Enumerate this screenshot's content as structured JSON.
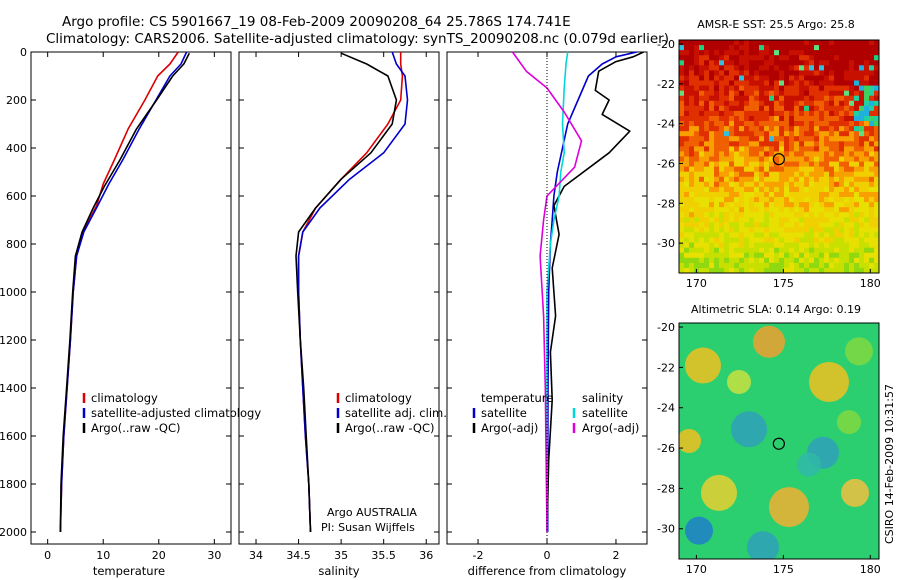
{
  "header": {
    "title_line1": "Argo profile: CS 5901667_19 08-Feb-2009 20090208_64 25.786S 174.741E",
    "title_line2": "Climatology: CARS2006. Satellite-adjusted climatology: synTS_20090208.nc (0.079d earlier)"
  },
  "colors": {
    "climatology": "#dd0000",
    "satellite": "#0000cc",
    "argo": "#000000",
    "salinity_sat": "#00d8d8",
    "salinity_argo": "#dd00dd"
  },
  "footer": {
    "stamp": "CSIRO 14-Feb-2009 10:31:57",
    "operator": "Argo AUSTRALIA",
    "pi": "PI: Susan Wijffels"
  },
  "chart_data": [
    {
      "type": "line",
      "panel": "temperature",
      "xlabel": "temperature",
      "ylabel": "",
      "xlim": [
        -3,
        33
      ],
      "ylim": [
        2050,
        0
      ],
      "xticks": [
        "0",
        "10",
        "20",
        "30"
      ],
      "yticks": [
        "0",
        "200",
        "400",
        "600",
        "800",
        "1000",
        "1200",
        "1400",
        "1600",
        "1800",
        "2000"
      ],
      "legend": [
        "climatology",
        "satellite-adjusted climatology",
        "Argo(..raw -QC)"
      ],
      "series": [
        {
          "name": "climatology",
          "color": "#dd0000",
          "x": [
            23.5,
            22.0,
            19.8,
            17.5,
            14.5,
            12.0,
            10.0,
            8.8,
            6.4,
            5.2,
            4.6,
            4.1,
            3.5,
            2.9,
            2.5,
            2.3
          ],
          "y": [
            0,
            50,
            100,
            200,
            320,
            450,
            550,
            640,
            750,
            850,
            1000,
            1200,
            1400,
            1600,
            1800,
            2000
          ]
        },
        {
          "name": "satellite-adjusted climatology",
          "color": "#0000cc",
          "x": [
            25.0,
            24.0,
            22.0,
            19.5,
            16.5,
            13.5,
            11.0,
            9.0,
            6.5,
            5.2,
            4.6,
            4.1,
            3.5,
            2.9,
            2.5,
            2.3
          ],
          "y": [
            0,
            50,
            100,
            200,
            320,
            450,
            550,
            640,
            750,
            850,
            1000,
            1200,
            1400,
            1600,
            1800,
            2000
          ]
        },
        {
          "name": "Argo(..raw -QC)",
          "color": "#000000",
          "x": [
            25.5,
            24.5,
            22.5,
            19.6,
            16.0,
            13.0,
            10.2,
            8.2,
            6.2,
            5.0,
            4.5,
            4.0,
            3.4,
            2.8,
            2.4,
            2.3
          ],
          "y": [
            5,
            50,
            100,
            200,
            320,
            450,
            560,
            650,
            750,
            850,
            1000,
            1200,
            1400,
            1600,
            1800,
            2000
          ]
        }
      ]
    },
    {
      "type": "line",
      "panel": "salinity",
      "xlabel": "salinity",
      "ylabel": "",
      "xlim": [
        33.8,
        36.15
      ],
      "ylim": [
        2050,
        0
      ],
      "xticks": [
        "34",
        "34.5",
        "35",
        "35.5",
        "36"
      ],
      "legend": [
        "climatology",
        "satellite adj. clim.",
        "Argo(..raw -QC)"
      ],
      "series": [
        {
          "name": "climatology",
          "color": "#dd0000",
          "x": [
            35.7,
            35.7,
            35.72,
            35.7,
            35.55,
            35.3,
            35.0,
            34.7,
            34.55,
            34.5,
            34.5,
            34.52,
            34.55,
            34.58,
            34.62,
            34.64
          ],
          "y": [
            0,
            50,
            100,
            200,
            300,
            420,
            530,
            650,
            750,
            850,
            1000,
            1200,
            1400,
            1600,
            1800,
            2000
          ]
        },
        {
          "name": "satellite adj. clim.",
          "color": "#0000cc",
          "x": [
            35.6,
            35.65,
            35.75,
            35.78,
            35.75,
            35.5,
            35.1,
            34.75,
            34.55,
            34.5,
            34.5,
            34.52,
            34.55,
            34.58,
            34.62,
            34.64
          ],
          "y": [
            0,
            50,
            100,
            200,
            300,
            420,
            530,
            650,
            750,
            850,
            1000,
            1200,
            1400,
            1600,
            1800,
            2000
          ]
        },
        {
          "name": "Argo(..raw -QC)",
          "color": "#000000",
          "x": [
            35.0,
            35.3,
            35.55,
            35.65,
            35.6,
            35.35,
            35.0,
            34.7,
            34.5,
            34.47,
            34.49,
            34.52,
            34.56,
            34.59,
            34.62,
            34.64
          ],
          "y": [
            5,
            50,
            100,
            200,
            300,
            420,
            530,
            650,
            750,
            850,
            1000,
            1200,
            1400,
            1600,
            1800,
            2000
          ]
        }
      ]
    },
    {
      "type": "line",
      "panel": "difference",
      "xlabel": "difference from climatology",
      "xlim": [
        -2.9,
        2.9
      ],
      "ylim": [
        2050,
        0
      ],
      "xticks": [
        "-2",
        "0",
        "2"
      ],
      "legend_temperature": [
        "temperature",
        "satellite",
        "Argo(-adj)"
      ],
      "legend_salinity": [
        "salinity",
        "satellite",
        "Argo(-adj)"
      ],
      "series": [
        {
          "name": "temperature satellite",
          "color": "#0000cc",
          "x": [
            2.6,
            2.0,
            1.6,
            1.2,
            0.6,
            0.3,
            0.2,
            0.15,
            0.1,
            0.05,
            0.03,
            0.02,
            0.02
          ],
          "y": [
            0,
            20,
            50,
            100,
            300,
            500,
            600,
            700,
            800,
            1000,
            1400,
            1800,
            2000
          ]
        },
        {
          "name": "temperature Argo(-adj)",
          "color": "#000000",
          "x": [
            2.8,
            2.5,
            2.0,
            1.5,
            1.4,
            1.8,
            1.6,
            2.4,
            1.8,
            0.5,
            0.2,
            0.35,
            0.15,
            0.25,
            0.1,
            0.15,
            0.05,
            0.0
          ],
          "y": [
            0,
            20,
            40,
            80,
            160,
            200,
            260,
            330,
            420,
            560,
            640,
            760,
            900,
            1100,
            1250,
            1450,
            1700,
            2000
          ]
        },
        {
          "name": "salinity satellite",
          "color": "#00d8d8",
          "x": [
            0.6,
            0.55,
            0.5,
            0.45,
            0.5,
            0.4,
            0.35,
            0.2,
            0.1,
            0.0,
            0.0,
            0.0,
            0.0
          ],
          "y": [
            0,
            50,
            150,
            300,
            420,
            500,
            600,
            700,
            800,
            1000,
            1400,
            1800,
            2000
          ]
        },
        {
          "name": "salinity Argo(-adj)",
          "color": "#dd00dd",
          "x": [
            -1.0,
            -0.8,
            -0.6,
            0.0,
            0.5,
            1.0,
            0.8,
            0.0,
            -0.1,
            -0.2,
            -0.1,
            -0.05,
            0.0
          ],
          "y": [
            0,
            40,
            80,
            150,
            250,
            370,
            480,
            600,
            700,
            850,
            1100,
            1400,
            2000
          ]
        }
      ]
    },
    {
      "type": "heatmap",
      "panel": "sst_map",
      "title": "AMSR-E SST: 25.5 Argo: 25.8",
      "xlim": [
        169,
        180.5
      ],
      "ylim": [
        -31.5,
        -19.8
      ],
      "xticks": [
        "170",
        "175",
        "180"
      ],
      "yticks": [
        "-20",
        "-22",
        "-24",
        "-26",
        "-28",
        "-30"
      ],
      "marker": {
        "lon": 174.741,
        "lat": -25.786
      }
    },
    {
      "type": "heatmap",
      "panel": "sla_map",
      "title": "Altimetric SLA: 0.14 Argo: 0.19",
      "xlim": [
        169,
        180.5
      ],
      "ylim": [
        -31.5,
        -19.8
      ],
      "xticks": [
        "170",
        "175",
        "180"
      ],
      "yticks": [
        "-20",
        "-22",
        "-24",
        "-26",
        "-28",
        "-30"
      ],
      "marker": {
        "lon": 174.741,
        "lat": -25.786
      }
    }
  ]
}
